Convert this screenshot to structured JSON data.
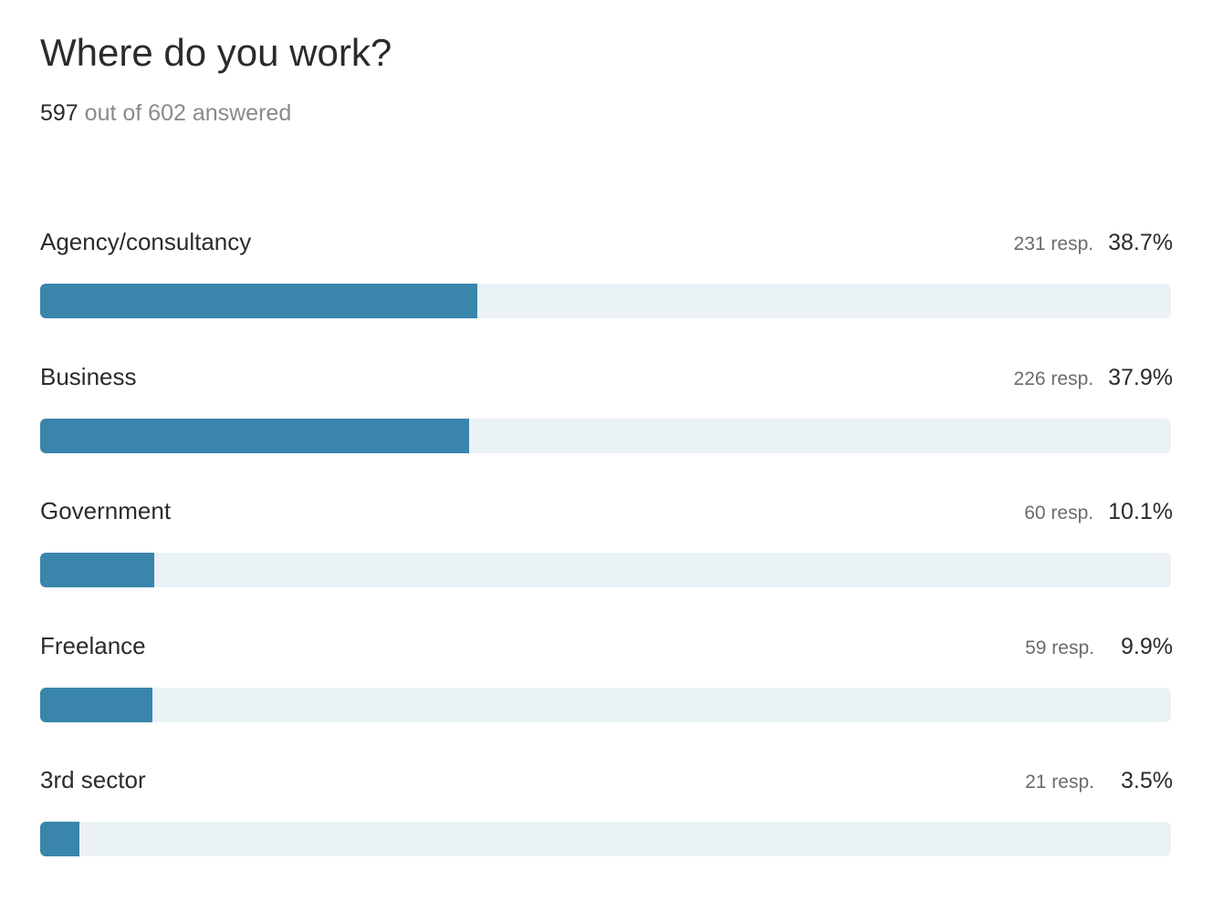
{
  "question": {
    "title": "Where do you work?",
    "answered_count": "597",
    "answered_suffix": "out of 602 answered"
  },
  "colors": {
    "bar_fill": "#3a85ab",
    "bar_track": "#eaf2f6"
  },
  "chart_data": {
    "type": "bar",
    "orientation": "horizontal",
    "title": "Where do you work?",
    "categories": [
      "Agency/consultancy",
      "Business",
      "Government",
      "Freelance",
      "3rd sector"
    ],
    "responses": [
      231,
      226,
      60,
      59,
      21
    ],
    "values": [
      38.7,
      37.9,
      10.1,
      9.9,
      3.5
    ],
    "response_labels": [
      "231 resp.",
      "226 resp.",
      "60 resp.",
      "59 resp.",
      "21 resp."
    ],
    "percent_labels": [
      "38.7%",
      "37.9%",
      "10.1%",
      "9.9%",
      "3.5%"
    ],
    "xlim": [
      0,
      100
    ],
    "grid": false
  }
}
